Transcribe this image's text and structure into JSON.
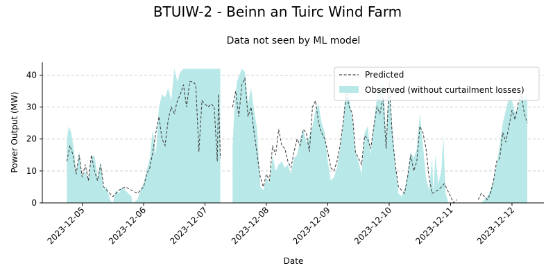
{
  "chart_data": {
    "type": "area",
    "title": "BTUIW-2 - Beinn an Tuirc Wind Farm",
    "subtitle": "Data not seen by ML model",
    "xlabel": "Date",
    "ylabel": "Power Output (MW)",
    "xlim": [
      4.35,
      12.52
    ],
    "ylim": [
      0,
      44
    ],
    "x_ticks": [
      "2023-12-05",
      "2023-12-06",
      "2023-12-07",
      "2023-12-08",
      "2023-12-09",
      "2023-12-10",
      "2023-12-11",
      "2023-12-12"
    ],
    "x_tick_values": [
      5,
      6,
      7,
      8,
      9,
      10,
      11,
      12
    ],
    "y_ticks": [
      0,
      10,
      20,
      30,
      40
    ],
    "grid": "y",
    "legend_position": "top-right",
    "series": [
      {
        "name": "Predicted",
        "style": "dashed-line",
        "color": "#444444",
        "segments": [
          [
            [
              4.75,
              13
            ],
            [
              4.8,
              18
            ],
            [
              4.85,
              15
            ],
            [
              4.9,
              9
            ],
            [
              4.95,
              15
            ],
            [
              5.0,
              8
            ],
            [
              5.05,
              12
            ],
            [
              5.1,
              7
            ],
            [
              5.15,
              15
            ],
            [
              5.2,
              10
            ],
            [
              5.25,
              7
            ],
            [
              5.3,
              12
            ],
            [
              5.35,
              5
            ],
            [
              5.4,
              4
            ],
            [
              5.45,
              3
            ],
            [
              5.5,
              2
            ],
            [
              5.55,
              3
            ],
            [
              5.6,
              4
            ],
            [
              5.7,
              5
            ],
            [
              5.8,
              4
            ],
            [
              5.9,
              3
            ],
            [
              6.0,
              5
            ],
            [
              6.05,
              9
            ],
            [
              6.1,
              11
            ],
            [
              6.15,
              16
            ],
            [
              6.2,
              22
            ],
            [
              6.25,
              27
            ],
            [
              6.3,
              20
            ],
            [
              6.35,
              18
            ],
            [
              6.4,
              26
            ],
            [
              6.45,
              30
            ],
            [
              6.5,
              28
            ],
            [
              6.55,
              32
            ],
            [
              6.6,
              34
            ],
            [
              6.65,
              37
            ],
            [
              6.7,
              30
            ],
            [
              6.75,
              38
            ],
            [
              6.8,
              38
            ],
            [
              6.85,
              37
            ],
            [
              6.9,
              16
            ],
            [
              6.95,
              32
            ],
            [
              7.0,
              31
            ],
            [
              7.05,
              30
            ],
            [
              7.1,
              31
            ],
            [
              7.15,
              30
            ],
            [
              7.2,
              13
            ],
            [
              7.22,
              34
            ],
            [
              7.25,
              14
            ]
          ],
          [
            [
              7.45,
              30
            ],
            [
              7.5,
              35
            ],
            [
              7.55,
              27
            ],
            [
              7.6,
              37
            ],
            [
              7.65,
              39
            ],
            [
              7.7,
              27
            ],
            [
              7.75,
              30
            ],
            [
              7.8,
              22
            ],
            [
              7.85,
              15
            ],
            [
              7.9,
              8
            ],
            [
              7.95,
              5
            ],
            [
              8.0,
              9
            ],
            [
              8.05,
              7
            ],
            [
              8.1,
              18
            ],
            [
              8.15,
              15
            ],
            [
              8.2,
              23
            ],
            [
              8.25,
              18
            ],
            [
              8.3,
              17
            ],
            [
              8.35,
              13
            ],
            [
              8.4,
              11
            ],
            [
              8.45,
              16
            ],
            [
              8.5,
              20
            ],
            [
              8.55,
              18
            ],
            [
              8.6,
              23
            ],
            [
              8.65,
              22
            ],
            [
              8.7,
              16
            ],
            [
              8.75,
              30
            ],
            [
              8.8,
              32
            ],
            [
              8.85,
              25
            ],
            [
              8.9,
              22
            ],
            [
              8.95,
              20
            ],
            [
              9.0,
              16
            ],
            [
              9.05,
              11
            ],
            [
              9.1,
              10
            ],
            [
              9.15,
              13
            ],
            [
              9.2,
              18
            ],
            [
              9.25,
              25
            ],
            [
              9.3,
              34
            ],
            [
              9.35,
              30
            ],
            [
              9.4,
              28
            ],
            [
              9.45,
              16
            ],
            [
              9.5,
              14
            ],
            [
              9.55,
              12
            ],
            [
              9.6,
              21
            ],
            [
              9.65,
              20
            ],
            [
              9.7,
              17
            ],
            [
              9.75,
              24
            ],
            [
              9.8,
              30
            ],
            [
              9.85,
              28
            ],
            [
              9.9,
              33
            ],
            [
              9.95,
              17
            ],
            [
              10.0,
              38
            ],
            [
              10.05,
              21
            ],
            [
              10.1,
              12
            ],
            [
              10.15,
              5
            ],
            [
              10.2,
              4
            ],
            [
              10.25,
              3
            ],
            [
              10.3,
              8
            ],
            [
              10.35,
              15
            ],
            [
              10.4,
              10
            ],
            [
              10.45,
              13
            ],
            [
              10.5,
              24
            ],
            [
              10.55,
              22
            ],
            [
              10.6,
              17
            ],
            [
              10.65,
              8
            ],
            [
              10.7,
              3
            ],
            [
              10.8,
              4
            ],
            [
              10.9,
              6
            ],
            [
              11.0,
              2
            ],
            [
              11.05,
              0
            ],
            [
              11.1,
              1
            ]
          ],
          [
            [
              11.45,
              1
            ],
            [
              11.5,
              3
            ],
            [
              11.55,
              2
            ],
            [
              11.6,
              1
            ],
            [
              11.65,
              3
            ],
            [
              11.7,
              7
            ],
            [
              11.75,
              13
            ],
            [
              11.8,
              14
            ],
            [
              11.85,
              22
            ],
            [
              11.9,
              19
            ],
            [
              11.95,
              24
            ],
            [
              12.0,
              29
            ],
            [
              12.05,
              26
            ],
            [
              12.1,
              31
            ],
            [
              12.15,
              34
            ],
            [
              12.2,
              28
            ],
            [
              12.25,
              25
            ]
          ]
        ]
      },
      {
        "name": "Observed (without curtailment losses)",
        "style": "filled-area",
        "color": "#b8e9e8",
        "segments": [
          [
            [
              4.75,
              20
            ],
            [
              4.78,
              24
            ],
            [
              4.82,
              22
            ],
            [
              4.87,
              16
            ],
            [
              4.9,
              9
            ],
            [
              4.95,
              16
            ],
            [
              5.0,
              8
            ],
            [
              5.05,
              10
            ],
            [
              5.1,
              7
            ],
            [
              5.15,
              14
            ],
            [
              5.2,
              15
            ],
            [
              5.25,
              8
            ],
            [
              5.3,
              13
            ],
            [
              5.35,
              4
            ],
            [
              5.4,
              5
            ],
            [
              5.45,
              1
            ],
            [
              5.5,
              0
            ],
            [
              5.55,
              4
            ],
            [
              5.6,
              3
            ],
            [
              5.65,
              5
            ],
            [
              5.7,
              4
            ],
            [
              5.75,
              3
            ],
            [
              5.8,
              2
            ],
            [
              5.82,
              0
            ],
            [
              5.9,
              1
            ],
            [
              5.95,
              4
            ],
            [
              6.0,
              6
            ],
            [
              6.05,
              10
            ],
            [
              6.1,
              14
            ],
            [
              6.15,
              23
            ],
            [
              6.2,
              15
            ],
            [
              6.25,
              30
            ],
            [
              6.3,
              34
            ],
            [
              6.35,
              33
            ],
            [
              6.4,
              36
            ],
            [
              6.45,
              32
            ],
            [
              6.5,
              42
            ],
            [
              6.55,
              38
            ],
            [
              6.6,
              41
            ],
            [
              6.65,
              42
            ],
            [
              6.7,
              42
            ],
            [
              6.8,
              42
            ],
            [
              6.9,
              42
            ],
            [
              7.0,
              42
            ],
            [
              7.1,
              42
            ],
            [
              7.2,
              42
            ],
            [
              7.25,
              42
            ]
          ],
          [
            [
              7.45,
              18
            ],
            [
              7.48,
              30
            ],
            [
              7.52,
              38
            ],
            [
              7.6,
              42
            ],
            [
              7.65,
              41
            ],
            [
              7.7,
              31
            ],
            [
              7.75,
              36
            ],
            [
              7.8,
              29
            ],
            [
              7.85,
              23
            ],
            [
              7.9,
              5
            ],
            [
              7.95,
              4
            ],
            [
              8.0,
              8
            ],
            [
              8.05,
              6
            ],
            [
              8.1,
              15
            ],
            [
              8.15,
              10
            ],
            [
              8.2,
              12
            ],
            [
              8.25,
              13
            ],
            [
              8.3,
              11
            ],
            [
              8.35,
              12
            ],
            [
              8.4,
              9
            ],
            [
              8.45,
              14
            ],
            [
              8.5,
              15
            ],
            [
              8.55,
              20
            ],
            [
              8.6,
              23
            ],
            [
              8.65,
              19
            ],
            [
              8.7,
              21
            ],
            [
              8.75,
              24
            ],
            [
              8.8,
              29
            ],
            [
              8.85,
              31
            ],
            [
              8.9,
              25
            ],
            [
              8.95,
              22
            ],
            [
              9.0,
              13
            ],
            [
              9.05,
              7
            ],
            [
              9.1,
              8
            ],
            [
              9.15,
              11
            ],
            [
              9.2,
              17
            ],
            [
              9.25,
              24
            ],
            [
              9.3,
              38
            ],
            [
              9.35,
              33
            ],
            [
              9.4,
              26
            ],
            [
              9.45,
              16
            ],
            [
              9.5,
              13
            ],
            [
              9.55,
              9
            ],
            [
              9.6,
              22
            ],
            [
              9.65,
              24
            ],
            [
              9.7,
              15
            ],
            [
              9.75,
              25
            ],
            [
              9.8,
              33
            ],
            [
              9.85,
              36
            ],
            [
              9.9,
              38
            ],
            [
              9.95,
              21
            ],
            [
              10.0,
              37
            ],
            [
              10.05,
              24
            ],
            [
              10.1,
              12
            ],
            [
              10.15,
              3
            ],
            [
              10.2,
              2
            ],
            [
              10.25,
              4
            ],
            [
              10.3,
              9
            ],
            [
              10.35,
              16
            ],
            [
              10.4,
              14
            ],
            [
              10.45,
              17
            ],
            [
              10.5,
              28
            ],
            [
              10.55,
              18
            ],
            [
              10.6,
              8
            ],
            [
              10.65,
              4
            ],
            [
              10.7,
              14
            ],
            [
              10.72,
              3
            ],
            [
              10.75,
              15
            ],
            [
              10.8,
              6
            ],
            [
              10.85,
              10
            ],
            [
              10.88,
              21
            ],
            [
              10.92,
              3
            ],
            [
              10.95,
              1
            ],
            [
              10.97,
              0
            ]
          ],
          [
            [
              11.5,
              0
            ],
            [
              11.55,
              1
            ],
            [
              11.6,
              2
            ],
            [
              11.65,
              4
            ],
            [
              11.7,
              7
            ],
            [
              11.75,
              12
            ],
            [
              11.8,
              18
            ],
            [
              11.85,
              25
            ],
            [
              11.9,
              29
            ],
            [
              11.95,
              33
            ],
            [
              12.0,
              32
            ],
            [
              12.05,
              28
            ],
            [
              12.1,
              30
            ],
            [
              12.15,
              34
            ],
            [
              12.2,
              33
            ],
            [
              12.25,
              35
            ]
          ]
        ]
      }
    ]
  }
}
